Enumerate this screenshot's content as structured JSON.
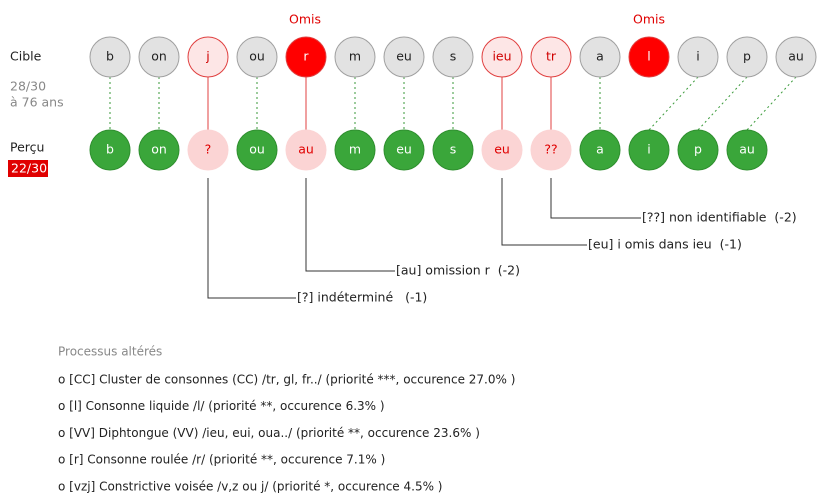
{
  "left": {
    "target_label": "Cible",
    "target_score": "28/30",
    "age": "à 76 ans",
    "perceived_label": "Perçu",
    "perceived_score": "22/30"
  },
  "target": [
    "b",
    "on",
    "j",
    "ou",
    "r",
    "m",
    "eu",
    "s",
    "ieu",
    "tr",
    "a",
    "l",
    "i",
    "p",
    "au"
  ],
  "omitted_labels": [
    "Omis",
    "Omis"
  ],
  "perceived": [
    "b",
    "on",
    "?",
    "ou",
    "au",
    "m",
    "eu",
    "s",
    "eu",
    "??",
    "a",
    "i",
    "p",
    "au"
  ],
  "errors": [
    "[?] indéterminé   (-1)",
    "[au] omission r  (-2)",
    "[eu] i omis dans ieu  (-1)",
    "[??] non identifiable  (-2)"
  ],
  "processes": {
    "title": "Processus altérés",
    "items": [
      "o [CC] Cluster de consonnes (CC) /tr, gl, fr../ (priorité ***, occurence 27.0% )",
      "o [l] Consonne liquide /l/ (priorité **, occurence 6.3% )",
      "o [VV] Diphtongue (VV) /ieu, eui, oua../ (priorité **, occurence 23.6% )",
      "o [r] Consonne roulée /r/ (priorité **, occurence 7.1% )",
      "o [vzj] Constrictive voisée /v,z ou j/ (priorité *, occurence 4.5% )"
    ]
  }
}
